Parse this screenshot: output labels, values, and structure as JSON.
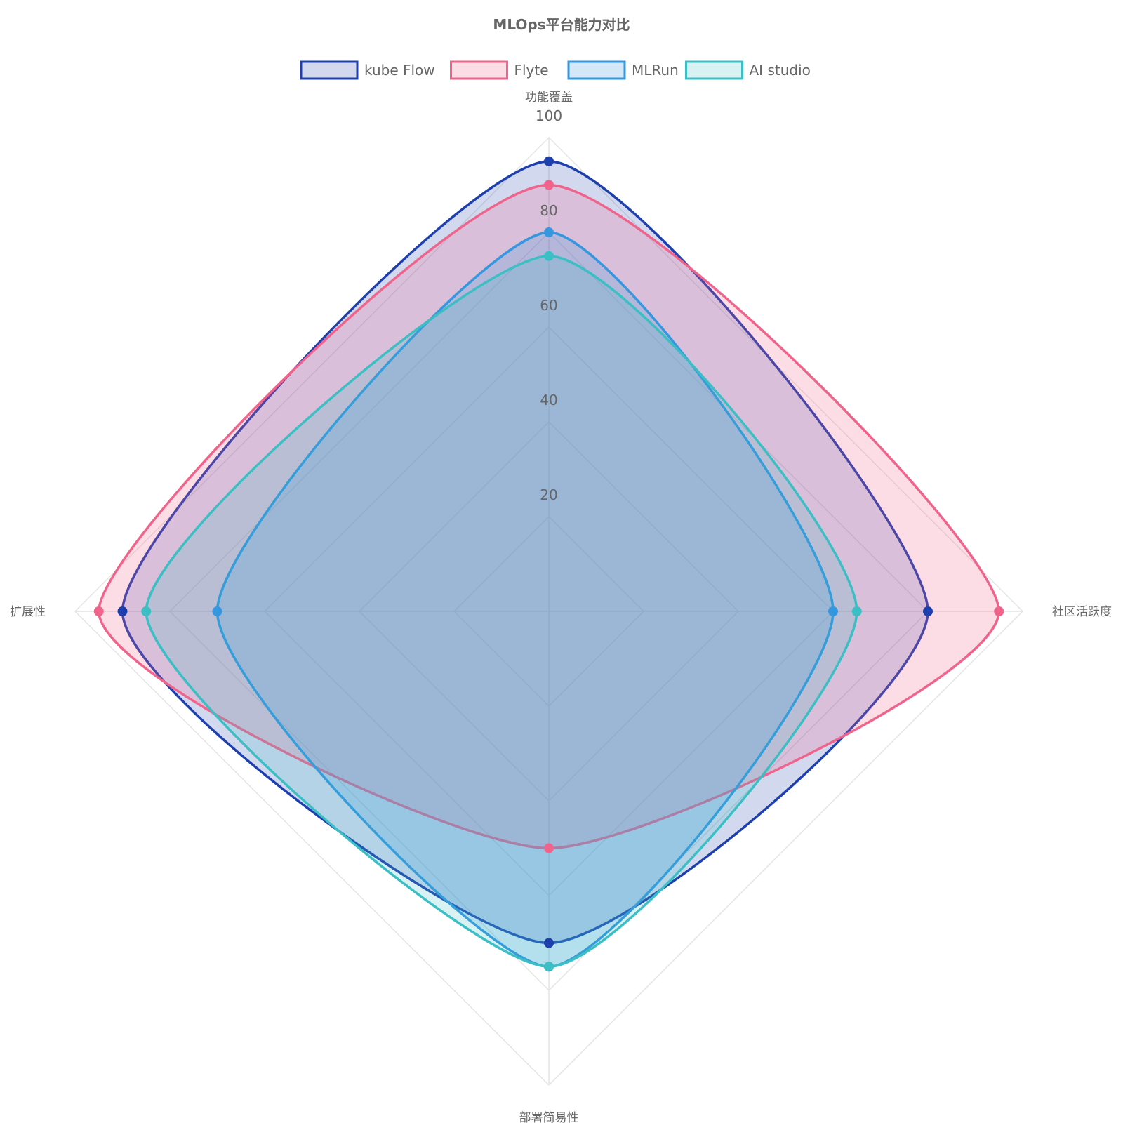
{
  "chart_data": {
    "type": "radar",
    "title": "MLOps平台能力对比",
    "axes": [
      "功能覆盖",
      "社区活跃度",
      "部署简易性",
      "扩展性"
    ],
    "ticks": [
      20,
      40,
      60,
      80,
      100
    ],
    "range": [
      0,
      100
    ],
    "legend_position": "top",
    "grid": true,
    "series": [
      {
        "name": "kube Flow",
        "values": [
          95,
          80,
          70,
          90
        ],
        "color": "#1e3fae",
        "fill": "rgba(30,63,174,0.20)"
      },
      {
        "name": "Flyte",
        "values": [
          90,
          95,
          50,
          95
        ],
        "color": "#f0648c",
        "fill": "rgba(240,100,140,0.22)"
      },
      {
        "name": "MLRun",
        "values": [
          80,
          60,
          75,
          70
        ],
        "color": "#3497e0",
        "fill": "rgba(52,151,224,0.22)"
      },
      {
        "name": "AI studio",
        "values": [
          75,
          65,
          75,
          85
        ],
        "color": "#3bbfc4",
        "fill": "rgba(59,191,196,0.20)"
      }
    ]
  }
}
